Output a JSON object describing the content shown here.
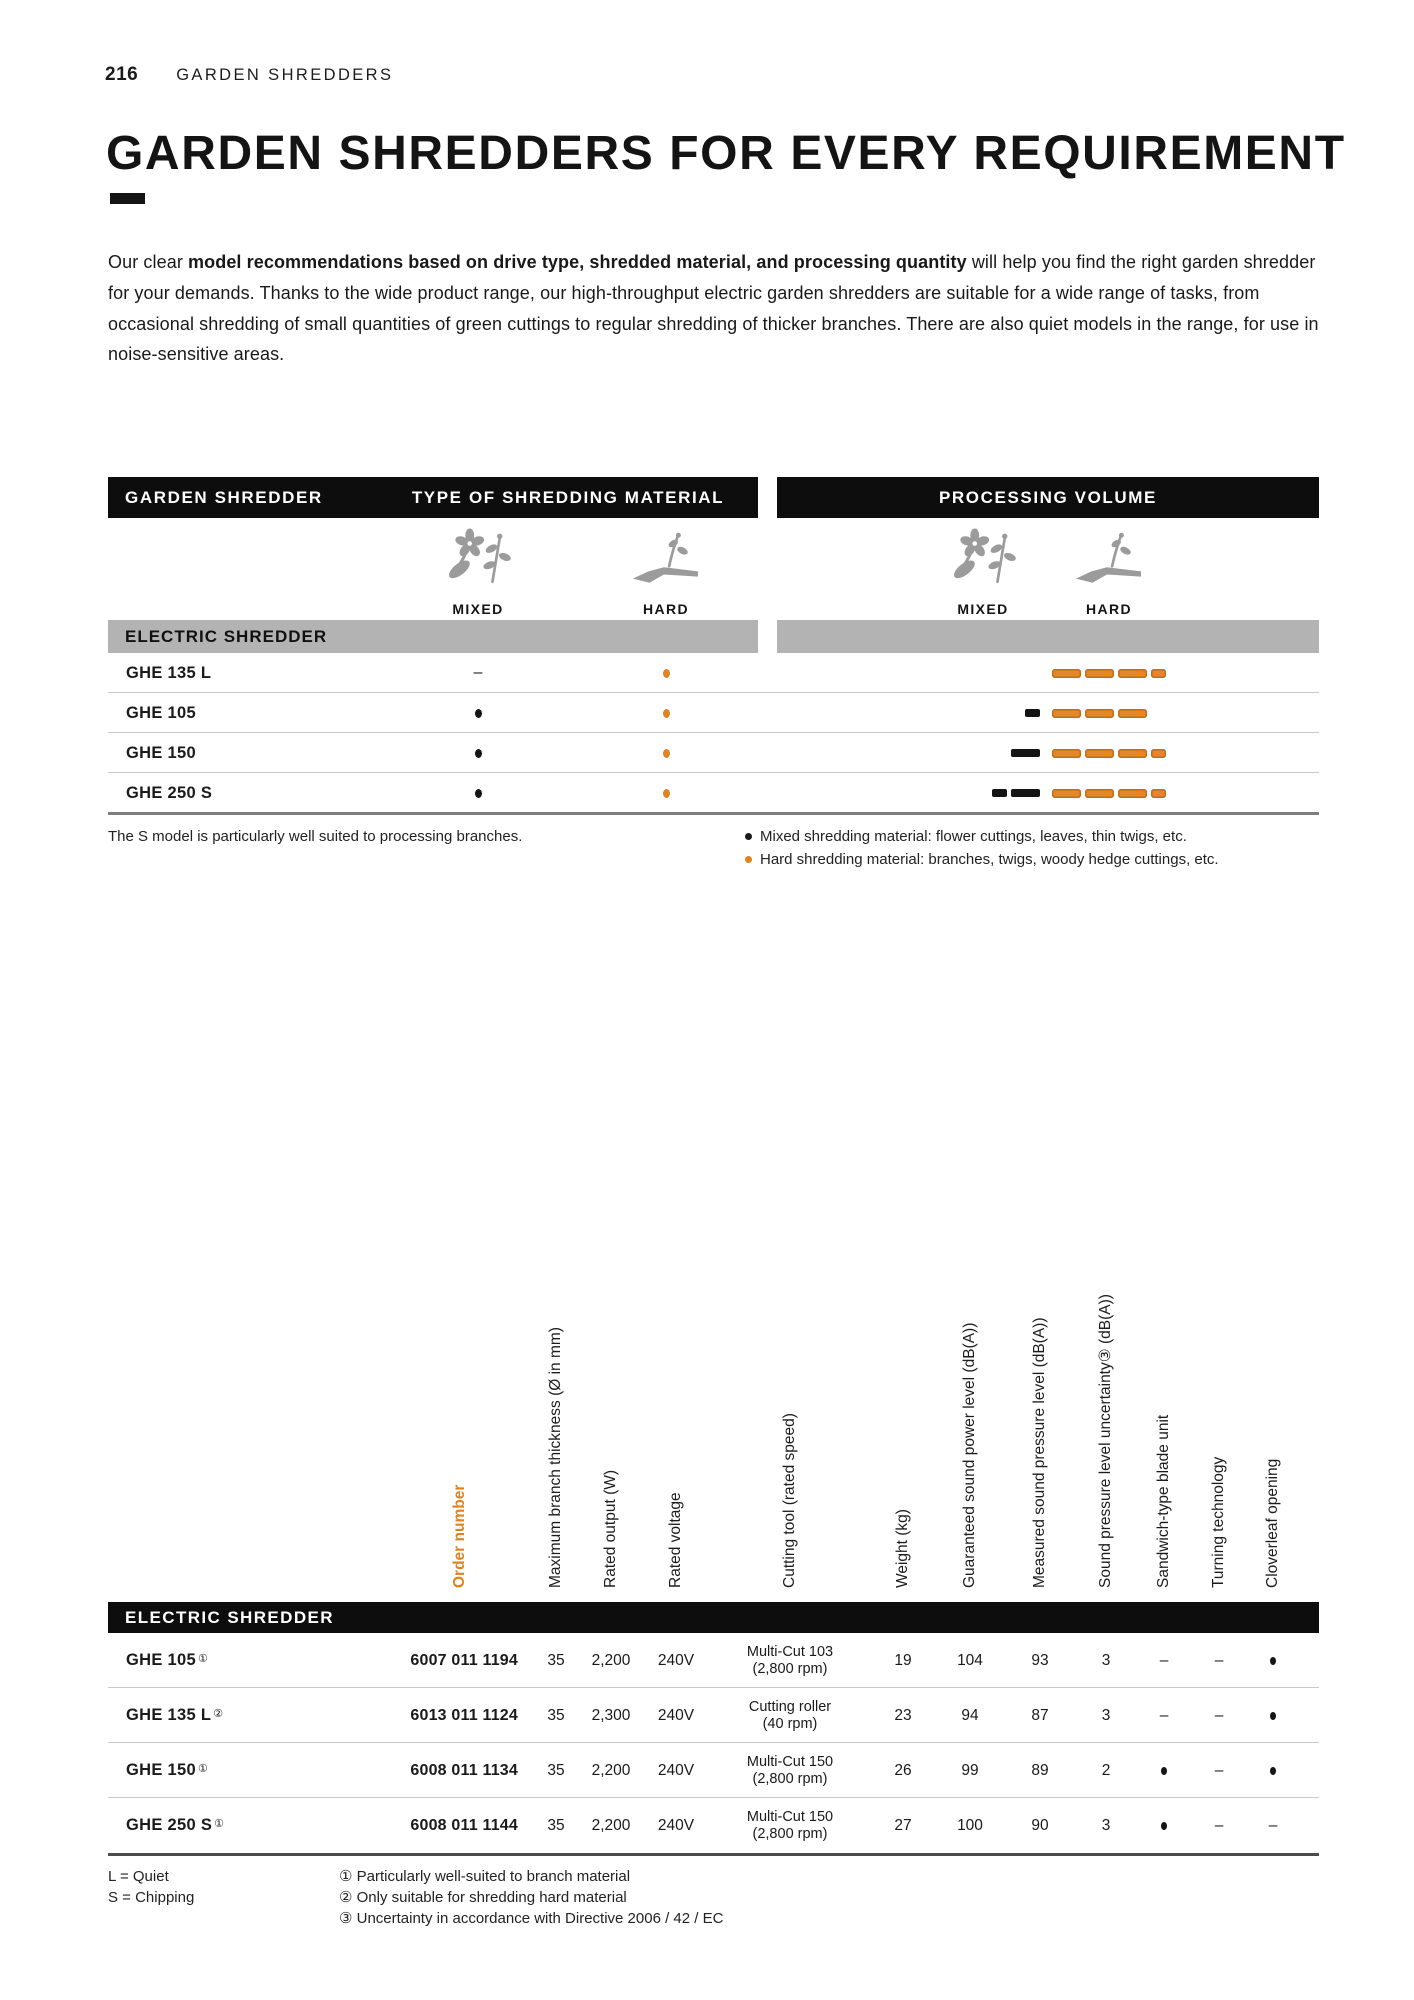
{
  "page_header": {
    "number": "216",
    "section": "GARDEN SHREDDERS"
  },
  "title": "GARDEN SHREDDERS FOR EVERY REQUIREMENT",
  "intro": {
    "pre": "Our clear ",
    "bold": "model recommendations based on drive type, shredded material, and processing quantity",
    "post": " will help you find the right garden shredder for your demands. Thanks to the wide product range, our high-throughput electric garden shredders are suitable for a wide range of tasks, from occasional shredding of small quantities of green cuttings to regular shredding of thicker branches. There are also quiet models in the range, for use in noise-sensitive areas."
  },
  "selector_table": {
    "col1_header": "GARDEN SHREDDER",
    "col2_header": "TYPE OF SHREDDING MATERIAL",
    "col3_header": "PROCESSING VOLUME",
    "material_mixed_label": "MIXED",
    "material_hard_label": "HARD",
    "group_label": "ELECTRIC SHREDDER",
    "rows": [
      {
        "model": "GHE 135 L",
        "mixed": "dash",
        "hard": "dot",
        "volume_mixed": [],
        "volume_hard": [
          "long",
          "long",
          "long",
          "short"
        ]
      },
      {
        "model": "GHE 105",
        "mixed": "dot",
        "hard": "dot",
        "volume_mixed": [
          "short"
        ],
        "volume_hard": [
          "long",
          "long",
          "long"
        ]
      },
      {
        "model": "GHE 150",
        "mixed": "dot",
        "hard": "dot",
        "volume_mixed": [
          "long"
        ],
        "volume_hard": [
          "long",
          "long",
          "long",
          "short"
        ]
      },
      {
        "model": "GHE 250 S",
        "mixed": "dot",
        "hard": "dot",
        "volume_mixed": [
          "short",
          "long"
        ],
        "volume_hard": [
          "long",
          "long",
          "long",
          "short"
        ]
      }
    ],
    "note": "The S model is particularly well suited to processing branches.",
    "legend": [
      {
        "color": "#1a1a1a",
        "label": "Mixed shredding material: flower cuttings, leaves, thin twigs, etc."
      },
      {
        "color": "#e0821f",
        "label": "Hard shredding material: branches, twigs, woody hedge cuttings, etc."
      }
    ]
  },
  "spec_table": {
    "group_label": "ELECTRIC SHREDDER",
    "column_headers": [
      "Order number",
      "Maximum branch thickness (Ø in mm)",
      "Rated output (W)",
      "Rated voltage",
      "Cutting tool (rated speed)",
      "Weight (kg)",
      "Guaranteed sound power level (dB(A))",
      "Measured sound pressure level (dB(A))",
      "Sound pressure level uncertainty③ (dB(A))",
      "Sandwich-type blade unit",
      "Turning technology",
      "Cloverleaf opening"
    ],
    "rows": [
      {
        "model": "GHE 105",
        "footnote_mark": "①",
        "order_number": "6007 011 1194",
        "max_branch_mm": "35",
        "rated_output_w": "2,200",
        "rated_voltage": "240V",
        "cutting_tool": "Multi-Cut 103",
        "cutting_tool_speed": "(2,800 rpm)",
        "weight_kg": "19",
        "guaranteed_db": "104",
        "measured_db": "93",
        "uncertainty_db": "3",
        "sandwich_blade": "dash",
        "turning_tech": "dash",
        "cloverleaf": "dot"
      },
      {
        "model": "GHE 135 L",
        "footnote_mark": "②",
        "order_number": "6013 011 1124",
        "max_branch_mm": "35",
        "rated_output_w": "2,300",
        "rated_voltage": "240V",
        "cutting_tool": "Cutting roller",
        "cutting_tool_speed": "(40 rpm)",
        "weight_kg": "23",
        "guaranteed_db": "94",
        "measured_db": "87",
        "uncertainty_db": "3",
        "sandwich_blade": "dash",
        "turning_tech": "dash",
        "cloverleaf": "dot"
      },
      {
        "model": "GHE 150",
        "footnote_mark": "①",
        "order_number": "6008 011 1134",
        "max_branch_mm": "35",
        "rated_output_w": "2,200",
        "rated_voltage": "240V",
        "cutting_tool": "Multi-Cut 150",
        "cutting_tool_speed": "(2,800 rpm)",
        "weight_kg": "26",
        "guaranteed_db": "99",
        "measured_db": "89",
        "uncertainty_db": "2",
        "sandwich_blade": "dot",
        "turning_tech": "dash",
        "cloverleaf": "dot"
      },
      {
        "model": "GHE 250 S",
        "footnote_mark": "①",
        "order_number": "6008 011 1144",
        "max_branch_mm": "35",
        "rated_output_w": "2,200",
        "rated_voltage": "240V",
        "cutting_tool": "Multi-Cut 150",
        "cutting_tool_speed": "(2,800 rpm)",
        "weight_kg": "27",
        "guaranteed_db": "100",
        "measured_db": "90",
        "uncertainty_db": "3",
        "sandwich_blade": "dot",
        "turning_tech": "dash",
        "cloverleaf": "dash"
      }
    ],
    "legend_left": [
      "L = Quiet",
      "S = Chipping"
    ],
    "footnotes": [
      "① Particularly well-suited to branch material",
      "② Only suitable for shredding hard material",
      "③ Uncertainty in accordance with Directive 2006 / 42 / EC"
    ]
  },
  "colors": {
    "accent_orange": "#e0821f",
    "bar_black": "#0d0d0d",
    "group_gray": "#b3b3b3",
    "icon_gray": "#9b9b9b"
  }
}
